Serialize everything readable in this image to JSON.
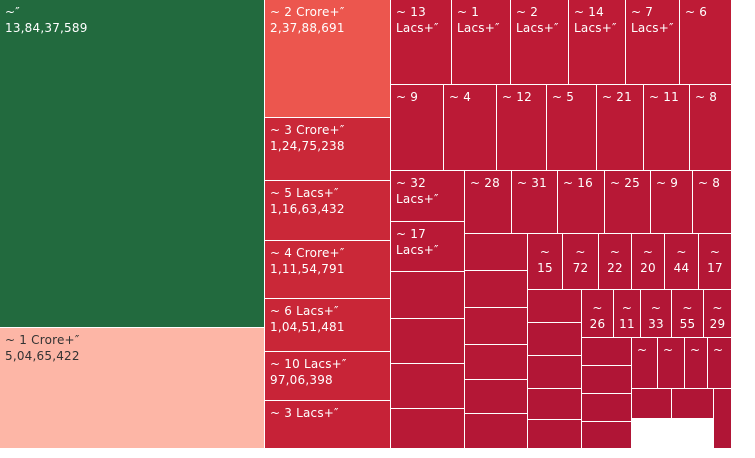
{
  "chart_data": {
    "type": "treemap",
    "tiles": [
      {
        "label": "~″",
        "value": "13,84,37,589",
        "color": "#226a3e"
      },
      {
        "label": "~ 1 Crore+″",
        "value": "5,04,65,422",
        "color": "#fdb6a6"
      },
      {
        "label": "~ 2 Crore+″",
        "value": "2,37,88,691",
        "color": "#ec564e"
      },
      {
        "label": "~ 3 Crore+″",
        "value": "1,24,75,238",
        "color": "#ca2838"
      },
      {
        "label": "~ 5 Lacs+″",
        "value": "1,16,63,432",
        "color": "#ca2838"
      },
      {
        "label": "~ 4 Crore+″",
        "value": "1,11,54,791",
        "color": "#ca2838"
      },
      {
        "label": "~ 6 Lacs+″",
        "value": "1,04,51,481",
        "color": "#c92637"
      },
      {
        "label": "~ 10 Lacs+″",
        "value": "97,06,398",
        "color": "#c82437"
      },
      {
        "label": "~ 3 Lacs+″",
        "value": "",
        "color": "#c62237"
      },
      {
        "label": "~ 13\nLacs+″",
        "value": "",
        "color": "#be1b36"
      },
      {
        "label": "~ 1\nLacs+″",
        "value": "",
        "color": "#be1b36"
      },
      {
        "label": "~ 2\nLacs+″",
        "value": "",
        "color": "#be1b36"
      },
      {
        "label": "~ 14\nLacs+″",
        "value": "",
        "color": "#be1b36"
      },
      {
        "label": "~ 7\nLacs+″",
        "value": "",
        "color": "#be1b36"
      },
      {
        "label": "~ 6",
        "value": "",
        "color": "#be1b36"
      },
      {
        "label": "~ 9",
        "value": "",
        "color": "#bb1a36"
      },
      {
        "label": "~ 4",
        "value": "",
        "color": "#bb1a36"
      },
      {
        "label": "~ 12",
        "value": "",
        "color": "#bb1a36"
      },
      {
        "label": "~ 5",
        "value": "",
        "color": "#bb1a36"
      },
      {
        "label": "~ 21",
        "value": "",
        "color": "#bb1a36"
      },
      {
        "label": "~ 11",
        "value": "",
        "color": "#bb1a36"
      },
      {
        "label": "~ 8",
        "value": "",
        "color": "#bb1a36"
      },
      {
        "label": "~ 32\nLacs+″",
        "value": "",
        "color": "#b91936"
      },
      {
        "label": "~ 28",
        "value": "",
        "color": "#b71836"
      },
      {
        "label": "~ 31",
        "value": "",
        "color": "#b71836"
      },
      {
        "label": "~ 16",
        "value": "",
        "color": "#b71836"
      },
      {
        "label": "~ 25",
        "value": "",
        "color": "#b71836"
      },
      {
        "label": "~ 9",
        "value": "",
        "color": "#b71836"
      },
      {
        "label": "~ 8",
        "value": "",
        "color": "#b71836"
      },
      {
        "label": "~ 17\nLacs+″",
        "value": "",
        "color": "#b91936"
      },
      {
        "label": "~\n15",
        "value": "",
        "color": "#b41736"
      },
      {
        "label": "~\n72",
        "value": "",
        "color": "#b41736"
      },
      {
        "label": "~\n22",
        "value": "",
        "color": "#b41736"
      },
      {
        "label": "~\n20",
        "value": "",
        "color": "#b41736"
      },
      {
        "label": "~\n44",
        "value": "",
        "color": "#b41736"
      },
      {
        "label": "~\n17",
        "value": "",
        "color": "#b41736"
      },
      {
        "label": "~\n26",
        "value": "",
        "color": "#b21636"
      },
      {
        "label": "~\n11",
        "value": "",
        "color": "#b21636"
      },
      {
        "label": "~\n33",
        "value": "",
        "color": "#b21636"
      },
      {
        "label": "~\n55",
        "value": "",
        "color": "#b21636"
      },
      {
        "label": "~\n29",
        "value": "",
        "color": "#b21636"
      },
      {
        "label": "~",
        "value": "",
        "color": "#b01536"
      },
      {
        "label": "~",
        "value": "",
        "color": "#b01536"
      },
      {
        "label": "~",
        "value": "",
        "color": "#b01536"
      },
      {
        "label": "~",
        "value": "",
        "color": "#b01536"
      },
      {
        "label": "",
        "value": "",
        "color": "#b81936"
      },
      {
        "label": "",
        "value": "",
        "color": "#b81936"
      },
      {
        "label": "",
        "value": "",
        "color": "#b81936"
      },
      {
        "label": "",
        "value": "",
        "color": "#b81936"
      },
      {
        "label": "",
        "value": "",
        "color": "#b61836"
      },
      {
        "label": "",
        "value": "",
        "color": "#b61836"
      },
      {
        "label": "",
        "value": "",
        "color": "#b61836"
      },
      {
        "label": "",
        "value": "",
        "color": "#b61836"
      },
      {
        "label": "",
        "value": "",
        "color": "#b41736"
      },
      {
        "label": "",
        "value": "",
        "color": "#b41736"
      },
      {
        "label": "",
        "value": "",
        "color": "#b41736"
      },
      {
        "label": "",
        "value": "",
        "color": "#b21636"
      },
      {
        "label": "",
        "value": "",
        "color": "#b21636"
      },
      {
        "label": "",
        "value": "",
        "color": "#b21636"
      },
      {
        "label": "",
        "value": "",
        "color": "#b21636"
      },
      {
        "label": "",
        "value": "",
        "color": "#b01536"
      },
      {
        "label": "",
        "value": "",
        "color": "#b01536"
      },
      {
        "label": "",
        "value": "",
        "color": "#b01536"
      },
      {
        "label": "",
        "value": "",
        "color": "#b01536"
      },
      {
        "label": "",
        "value": "",
        "color": "#b01536"
      },
      {
        "label": "",
        "value": "",
        "color": "#b01536"
      },
      {
        "label": "",
        "value": "",
        "color": "#b01536"
      }
    ]
  }
}
